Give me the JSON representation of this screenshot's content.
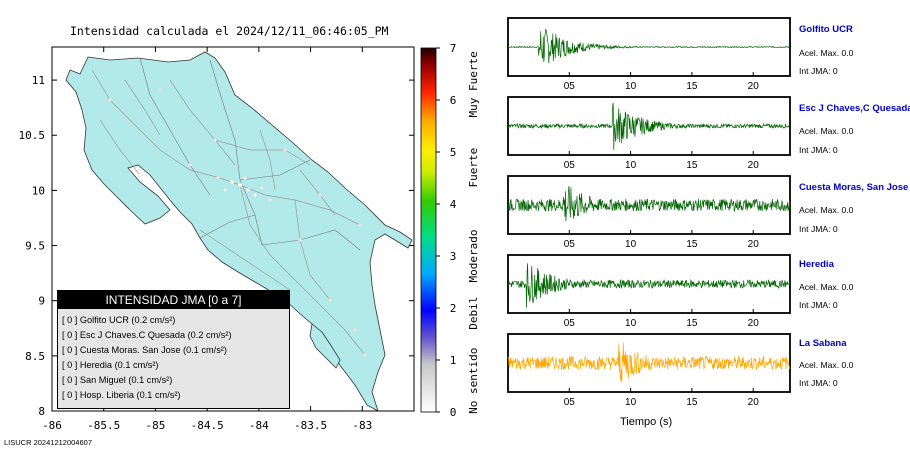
{
  "map": {
    "title": "Intensidad calculada el 2024/12/11_06:46:05_PM",
    "credit": "LISUCR 20241212004607",
    "land_color": "#b2eaea",
    "xlim": [
      -86,
      -82.5
    ],
    "ylim": [
      8,
      11.3
    ],
    "xticks": [
      "-86",
      "-85.5",
      "-85",
      "-84.5",
      "-84",
      "-83.5",
      "-83"
    ],
    "yticks": [
      "8",
      "8.5",
      "9",
      "9.5",
      "10",
      "10.5",
      "11"
    ]
  },
  "legend": {
    "title": "INTENSIDAD JMA [0 a 7]",
    "rows": [
      "[ 0 ]  Golfito UCR (0.2 cm/s²)",
      "[ 0 ]  Esc J Chaves.C Quesada (0.2 cm/s²)",
      "[ 0 ]  Cuesta Moras. San Jose (0.1 cm/s²)",
      "[ 0 ]  Heredia (0.1 cm/s²)",
      "[ 0 ]  San Miguel (0.1 cm/s²)",
      "[ 0 ]  Hosp. Liberia (0.1 cm/s²)"
    ]
  },
  "colorbar": {
    "ticks": [
      "0",
      "1",
      "2",
      "3",
      "4",
      "5",
      "6",
      "7"
    ],
    "labels": [
      "No sentido",
      "Debil",
      "Moderado",
      "Fuerte",
      "Muy Fuerte"
    ]
  },
  "waveforms": {
    "xlabel": "Tiempo (s)",
    "xticks": [
      "05",
      "10",
      "15",
      "20"
    ],
    "xlim": [
      0,
      23
    ],
    "accel_label": "Acel. Max. 0.0",
    "int_label": "Int JMA: 0",
    "stations": [
      {
        "name": "Golfito UCR",
        "color": "#006400",
        "event_at": 2.5,
        "amp": 0.92,
        "noise": 0.04
      },
      {
        "name": "Esc J Chaves,C Quesada",
        "color": "#006400",
        "event_at": 8.5,
        "amp": 0.95,
        "noise": 0.15
      },
      {
        "name": "Cuesta Moras, San Jose",
        "color": "#006400",
        "event_at": 4.5,
        "amp": 0.9,
        "noise": 0.45
      },
      {
        "name": "Heredia",
        "color": "#006400",
        "event_at": 1.5,
        "amp": 0.9,
        "noise": 0.3
      },
      {
        "name": "La Sabana",
        "color": "#ffa500",
        "event_at": 9.0,
        "amp": 0.9,
        "noise": 0.5
      }
    ]
  },
  "chart_data": {
    "type": "line",
    "title": "",
    "xlabel": "Tiempo (s)",
    "ylabel": "",
    "xlim": [
      0,
      23
    ],
    "series": [
      {
        "name": "Golfito UCR",
        "max_accel": 0.0,
        "int_jma": 0
      },
      {
        "name": "Esc J Chaves,C Quesada",
        "max_accel": 0.0,
        "int_jma": 0
      },
      {
        "name": "Cuesta Moras, San Jose",
        "max_accel": 0.0,
        "int_jma": 0
      },
      {
        "name": "Heredia",
        "max_accel": 0.0,
        "int_jma": 0
      },
      {
        "name": "La Sabana",
        "max_accel": 0.0,
        "int_jma": 0
      }
    ]
  }
}
